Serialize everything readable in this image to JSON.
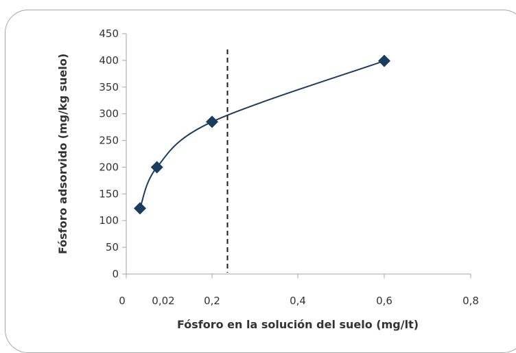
{
  "chart_data": {
    "type": "scatter",
    "xlabel": "Fósforo en la solución del suelo (mg/lt)",
    "ylabel": "Fósforo adsorvido  (mg/kg suelo)",
    "y_ticks": [
      "0",
      "50",
      "100",
      "150",
      "200",
      "250",
      "300",
      "350",
      "400",
      "450"
    ],
    "x_ticks": [
      "0",
      "0,02",
      "0,2",
      "0,4",
      "0,6",
      "0,8"
    ],
    "ylim": [
      0,
      450
    ],
    "xlim": [
      0,
      0.8
    ],
    "x_scale": "piecewise",
    "series": [
      {
        "x": [
          0.01,
          0.03,
          0.2,
          0.6
        ],
        "y": [
          123,
          200,
          285,
          399
        ],
        "marker": "diamond",
        "line": "smooth"
      }
    ],
    "reference_line": {
      "x": 0.236,
      "style": "dashed"
    },
    "grid": false,
    "legend": "none",
    "colors": {
      "series": "#1a3c5e",
      "reference_line": "#1a1a1a",
      "axis": "#a6a6a6",
      "frame": "#a6a6a6"
    }
  }
}
